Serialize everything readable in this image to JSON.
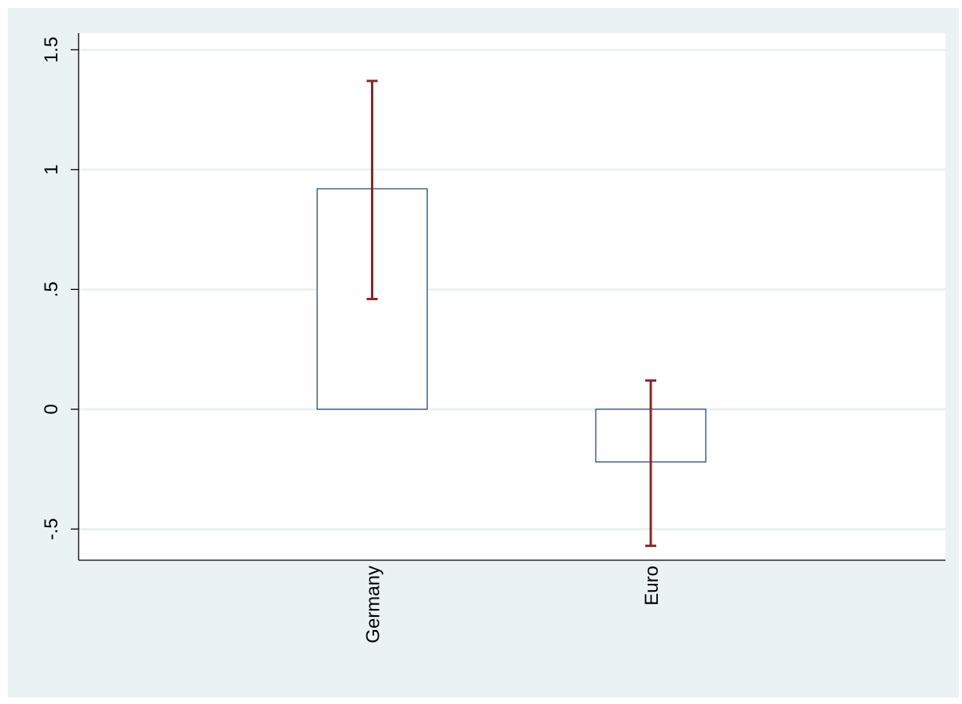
{
  "chart_data": {
    "type": "bar",
    "title": "",
    "xlabel": "",
    "ylabel": "",
    "categories": [
      "Germany",
      "Euro"
    ],
    "series": [
      {
        "values": [
          0.92,
          -0.22
        ],
        "error_low": [
          0.46,
          -0.57
        ],
        "error_high": [
          1.37,
          0.12
        ]
      }
    ],
    "ylim": [
      -0.63,
      1.57
    ],
    "yticks": [
      -0.5,
      0,
      0.5,
      1,
      1.5
    ],
    "ytick_labels": [
      "-.5",
      "0",
      ".5",
      "1",
      "1.5"
    ],
    "grid": true,
    "legend": "none",
    "colors": {
      "background": "#eaf2f3",
      "plot_area": "#ffffff",
      "bar_outline": "#1a3a6e",
      "bar_fill": "#ffffff",
      "error_bar": "#8b2525",
      "grid": "#eaf2f3"
    }
  }
}
